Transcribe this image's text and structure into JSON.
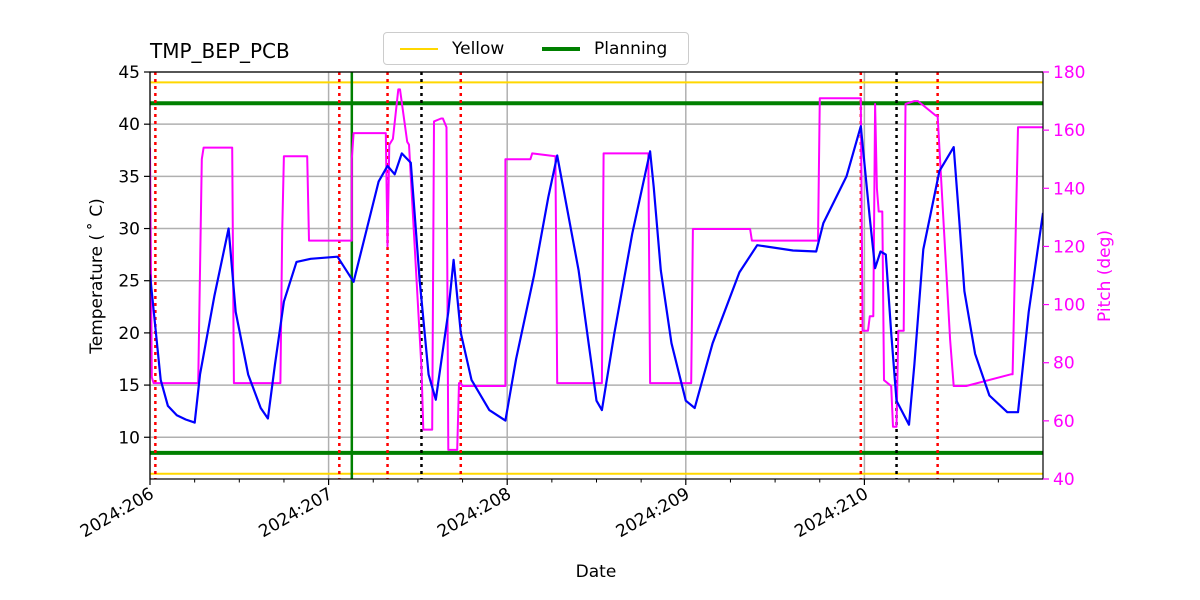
{
  "chart_data": {
    "type": "line",
    "title": "TMP_BEP_PCB",
    "xlabel": "Date",
    "ylabel": "Temperature ($^\\circ$C)",
    "ylabel_display": "Temperature ( ˚ C)",
    "y2label": "Pitch (deg)",
    "xlim": [
      206.0,
      211.0
    ],
    "ylim": [
      6,
      45
    ],
    "y2lim": [
      40,
      180
    ],
    "x_ticks": [
      206,
      207,
      208,
      209,
      210
    ],
    "x_tick_labels": [
      "2024:206",
      "2024:207",
      "2024:208",
      "2024:209",
      "2024:210"
    ],
    "y_ticks": [
      10,
      15,
      20,
      25,
      30,
      35,
      40,
      45
    ],
    "y2_ticks": [
      40,
      60,
      80,
      100,
      120,
      140,
      160,
      180
    ],
    "grid": true,
    "legend_placement": "top-center",
    "legend": [
      {
        "label": "Yellow",
        "color": "#FFD700"
      },
      {
        "label": "Planning",
        "color": "#008000"
      }
    ],
    "limits": {
      "yellow": [
        6.5,
        44
      ],
      "planning": [
        8.5,
        42
      ]
    },
    "colors": {
      "temperature": "#0000FF",
      "pitch": "#FF00FF",
      "yellow": "#FFD700",
      "planning": "#008000",
      "red_vline": "#FF0000",
      "black_vline": "#000000"
    },
    "red_vlines": [
      206.03,
      207.06,
      207.33,
      207.74,
      209.98,
      210.41
    ],
    "black_vlines": [
      207.52,
      210.18
    ],
    "green_vlines": [
      207.13
    ],
    "series": [
      {
        "name": "Temperature",
        "axis": "left",
        "x": [
          206.0,
          206.03,
          206.06,
          206.1,
          206.15,
          206.2,
          206.25,
          206.28,
          206.36,
          206.44,
          206.48,
          206.55,
          206.62,
          206.66,
          206.7,
          206.75,
          206.82,
          206.9,
          207.05,
          207.14,
          207.2,
          207.28,
          207.33,
          207.37,
          207.41,
          207.46,
          207.51,
          207.56,
          207.6,
          207.67,
          207.7,
          207.74,
          207.8,
          207.9,
          207.99,
          208.05,
          208.15,
          208.23,
          208.28,
          208.4,
          208.5,
          208.53,
          208.6,
          208.7,
          208.8,
          208.82,
          208.86,
          208.92,
          209.0,
          209.05,
          209.15,
          209.3,
          209.4,
          209.6,
          209.73,
          209.77,
          209.9,
          209.98,
          210.03,
          210.06,
          210.09,
          210.12,
          210.15,
          210.18,
          210.25,
          210.28,
          210.33,
          210.42,
          210.5,
          210.53,
          210.56,
          210.62,
          210.7,
          210.8,
          210.86,
          210.92,
          211.0
        ],
        "y": [
          25.6,
          20.5,
          15.5,
          13.0,
          12.1,
          11.7,
          11.4,
          16.0,
          23.5,
          30.0,
          22.0,
          16.0,
          12.8,
          11.8,
          17.0,
          23.0,
          26.8,
          27.1,
          27.3,
          24.9,
          29.0,
          34.5,
          36.0,
          35.2,
          37.2,
          36.3,
          25.0,
          16.0,
          13.6,
          22.0,
          27.0,
          20.0,
          15.5,
          12.6,
          11.6,
          17.5,
          25.5,
          33.0,
          37.0,
          26.0,
          13.5,
          12.6,
          20.0,
          29.5,
          37.4,
          34.0,
          26.0,
          19.0,
          13.5,
          12.8,
          19.0,
          25.8,
          28.4,
          27.9,
          27.8,
          30.5,
          35.0,
          39.8,
          31.0,
          26.2,
          27.8,
          27.5,
          20.0,
          13.5,
          11.2,
          17.0,
          28.0,
          35.5,
          37.8,
          31.0,
          24.0,
          18.0,
          14.0,
          12.4,
          12.4,
          22.0,
          31.5
        ]
      },
      {
        "name": "Pitch",
        "axis": "right",
        "x": [
          206.0,
          206.01,
          206.02,
          206.27,
          206.29,
          206.3,
          206.46,
          206.47,
          206.73,
          206.74,
          206.75,
          206.88,
          206.89,
          207.13,
          207.13,
          207.14,
          207.32,
          207.33,
          207.34,
          207.36,
          207.39,
          207.4,
          207.44,
          207.45,
          207.52,
          207.53,
          207.54,
          207.58,
          207.59,
          207.63,
          207.64,
          207.66,
          207.67,
          207.72,
          207.73,
          207.74,
          207.75,
          207.99,
          207.99,
          208.13,
          208.14,
          208.27,
          208.28,
          208.53,
          208.54,
          208.79,
          208.8,
          209.03,
          209.04,
          209.36,
          209.37,
          209.74,
          209.75,
          209.98,
          209.99,
          210.02,
          210.03,
          210.05,
          210.06,
          210.07,
          210.08,
          210.1,
          210.11,
          210.15,
          210.16,
          210.18,
          210.19,
          210.22,
          210.23,
          210.28,
          210.3,
          210.4,
          210.41,
          210.48,
          210.5,
          210.56,
          210.57,
          210.82,
          210.83,
          210.86,
          210.87,
          211.0
        ],
        "y": [
          154,
          75,
          73,
          73,
          150,
          154,
          154,
          73,
          73,
          125,
          151,
          151,
          122,
          122,
          150,
          159,
          159,
          120,
          155,
          157,
          174,
          174,
          156,
          155,
          78,
          57,
          57,
          57,
          163,
          164,
          164,
          161,
          50,
          50,
          73,
          73,
          72,
          72,
          150,
          150,
          152,
          151,
          73,
          73,
          152,
          152,
          73,
          73,
          126,
          126,
          122,
          122,
          171,
          171,
          91,
          91,
          96,
          96,
          169,
          140,
          132,
          132,
          74,
          72,
          58,
          58,
          91,
          91,
          169,
          170,
          170,
          165,
          165,
          88,
          72,
          72,
          72,
          76,
          76,
          161,
          161,
          161
        ]
      }
    ]
  }
}
